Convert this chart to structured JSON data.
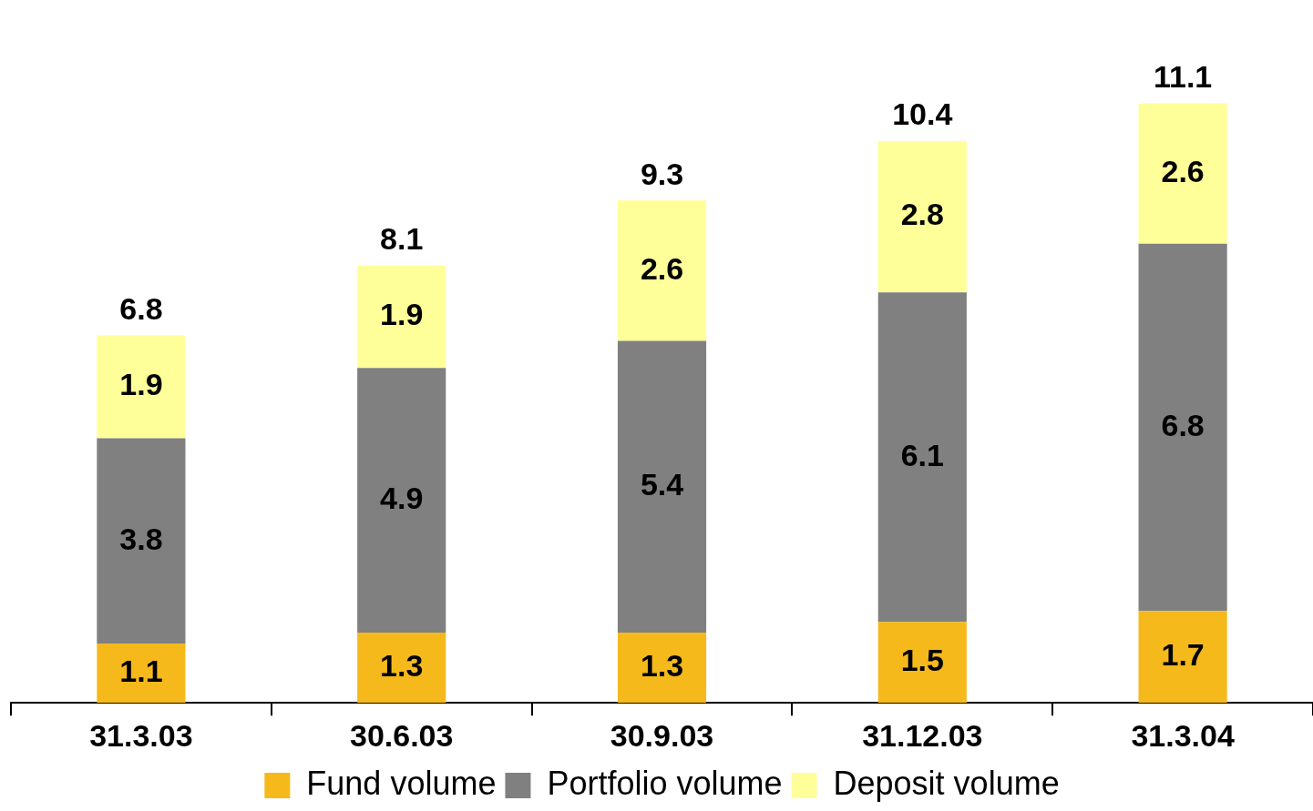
{
  "chart_data": {
    "type": "bar",
    "stacked": true,
    "categories": [
      "31.3.03",
      "30.6.03",
      "30.9.03",
      "31.12.03",
      "31.3.04"
    ],
    "series": [
      {
        "name": "Fund volume",
        "color": "#f5b91b",
        "values": [
          1.1,
          1.3,
          1.3,
          1.5,
          1.7
        ]
      },
      {
        "name": "Portfolio volume",
        "color": "#808080",
        "values": [
          3.8,
          4.9,
          5.4,
          6.1,
          6.8
        ]
      },
      {
        "name": "Deposit volume",
        "color": "#ffff99",
        "values": [
          1.9,
          1.9,
          2.6,
          2.8,
          2.6
        ]
      }
    ],
    "data_labels": true,
    "totals": [
      "6.8",
      "8.1",
      "9.3",
      "10.4",
      "11.1"
    ],
    "legend": "bottom",
    "grid": false
  }
}
